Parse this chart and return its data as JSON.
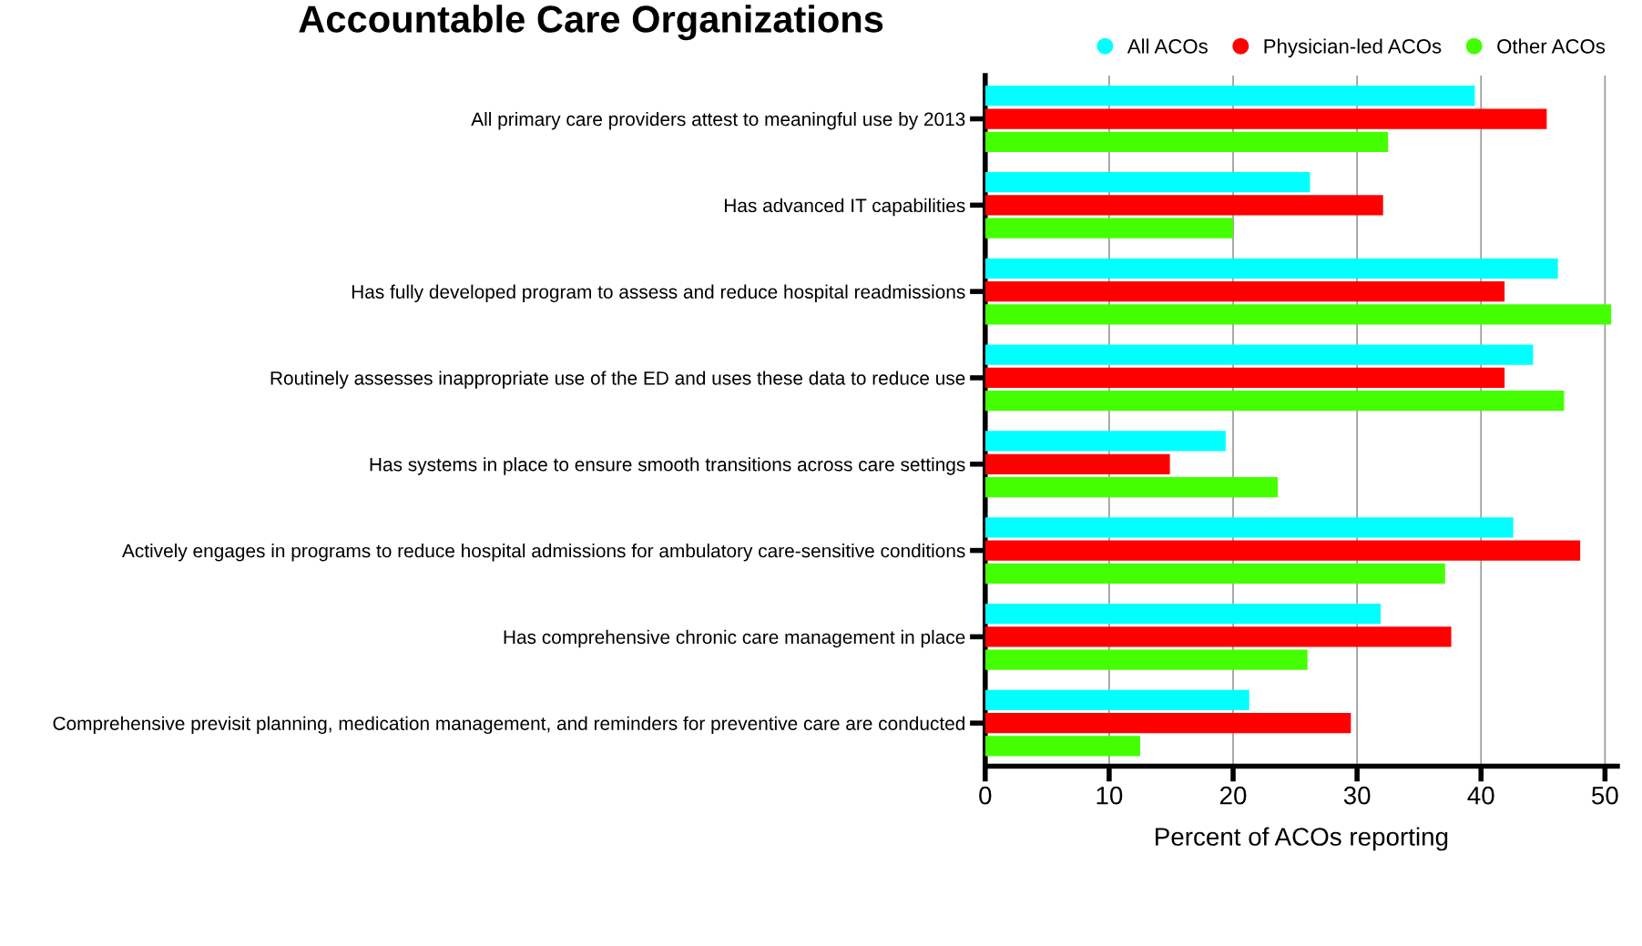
{
  "chart_data": {
    "type": "bar",
    "orientation": "horizontal",
    "title": "Accountable Care Organizations",
    "xlabel": "Percent of ACOs reporting",
    "categories": [
      "All primary care providers attest to meaningful use by 2013",
      "Has advanced IT capabilities",
      "Has fully developed program to assess and reduce hospital readmissions",
      "Routinely assesses inappropriate use of the ED and uses these data to reduce use",
      "Has systems in place to ensure smooth transitions across care settings",
      "Actively engages in programs to reduce hospital admissions for ambulatory care-sensitive conditions",
      "Has comprehensive chronic care management in place",
      "Comprehensive previsit planning, medication management, and reminders for preventive care are conducted"
    ],
    "series": [
      {
        "name": "All ACOs",
        "color": "#00ffff",
        "values": [
          39.5,
          26.2,
          46.2,
          44.2,
          19.4,
          42.6,
          31.9,
          21.3
        ]
      },
      {
        "name": "Physician-led ACOs",
        "color": "#ff0000",
        "values": [
          45.3,
          32.1,
          41.9,
          41.9,
          14.9,
          48.0,
          37.6,
          29.5
        ]
      },
      {
        "name": "Other ACOs",
        "color": "#44ff00",
        "values": [
          32.5,
          20.0,
          50.5,
          46.7,
          23.6,
          37.1,
          26.0,
          12.5
        ]
      }
    ],
    "xlim": [
      0,
      51
    ],
    "xticks": [
      0,
      10,
      20,
      30,
      40,
      50
    ],
    "grid": "x",
    "legend": "top right",
    "marker": "circle"
  }
}
